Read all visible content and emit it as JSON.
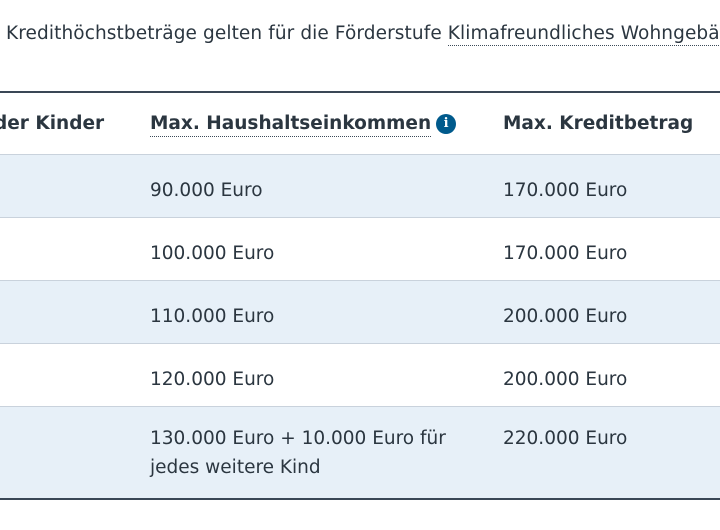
{
  "intro": {
    "text": "Kredithöchstbeträge gelten für die Förderstufe ",
    "link": "Klimafreundliches Wohngebäude"
  },
  "table": {
    "headers": {
      "children": "der Kinder",
      "income": "Max. Haushaltseinkommen",
      "income_icon": "info-icon",
      "credit": "Max. Kreditbetrag"
    },
    "rows": [
      {
        "income": "90.000 Euro",
        "credit": "170.000 Euro"
      },
      {
        "income": "100.000 Euro",
        "credit": "170.000 Euro"
      },
      {
        "income": "110.000 Euro",
        "credit": "200.000 Euro"
      },
      {
        "income": "120.000 Euro",
        "credit": "200.000 Euro"
      },
      {
        "income_line1": "130.000 Euro + 10.000 Euro für",
        "income_line2": "jedes weitere Kind",
        "credit": "220.000 Euro"
      }
    ]
  },
  "colors": {
    "row_alt_bg": "#e7f0f8",
    "info_icon_bg": "#005a8c",
    "rule": "#3a4756"
  }
}
